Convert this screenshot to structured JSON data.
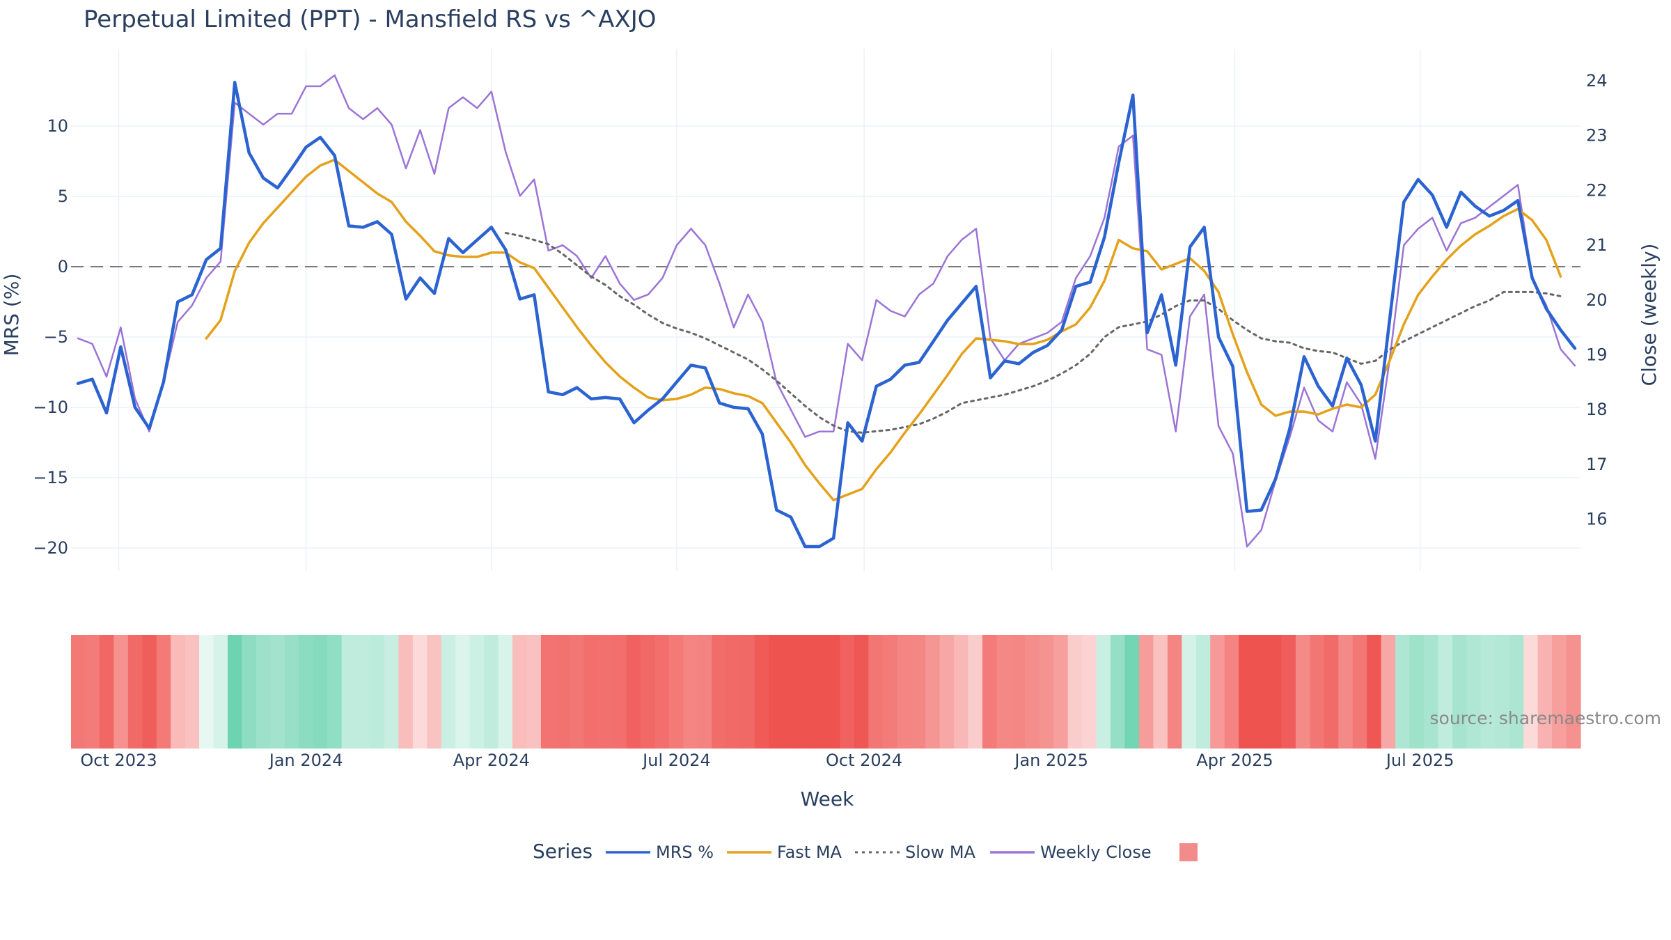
{
  "chart_data": {
    "type": "line",
    "title": "Perpetual Limited (PPT) - Mansfield RS vs ^AXJO",
    "xlabel": "Week",
    "ylabel": "MRS (%)",
    "y2label": "Close (weekly)",
    "ylim": [
      -21.5,
      14.5
    ],
    "y2lim": [
      15.2,
      24.6
    ],
    "yticks": [
      10,
      5,
      0,
      -5,
      -10,
      -15,
      -20
    ],
    "ytick_labels": [
      "10",
      "5",
      "0",
      "−5",
      "−10",
      "−15",
      "−20"
    ],
    "y2ticks": [
      24,
      23,
      22,
      21,
      20,
      19,
      18,
      17,
      16
    ],
    "x_start": "2023-09-11",
    "x_ticks": [
      "2023-10-01",
      "2024-01-01",
      "2024-04-01",
      "2024-07-01",
      "2024-10-01",
      "2025-01-01",
      "2025-04-01",
      "2025-07-01"
    ],
    "x_tick_labels": [
      "Oct 2023",
      "Jan 2024",
      "Apr 2024",
      "Jul 2024",
      "Oct 2024",
      "Jan 2025",
      "Apr 2025",
      "Jul 2025"
    ],
    "zero_line": 0,
    "legend_title": "Series",
    "legend_position": "bottom",
    "source_note": "source: sharemaestro.com",
    "series": [
      {
        "name": "MRS %",
        "color": "#2b63d0",
        "style": "solid",
        "axis": "y",
        "values": [
          -8.3,
          -8,
          -10.4,
          -5.7,
          -10,
          -11.5,
          -8.2,
          -2.5,
          -2,
          0.5,
          1.3,
          13.1,
          8.1,
          6.3,
          5.6,
          7,
          8.5,
          9.2,
          7.9,
          2.9,
          2.8,
          3.2,
          2.3,
          -2.3,
          -0.8,
          -1.9,
          2,
          1,
          1.9,
          2.8,
          1.2,
          -2.3,
          -2,
          -8.9,
          -9.1,
          -8.6,
          -9.4,
          -9.3,
          -9.4,
          -11.1,
          -10.2,
          -9.4,
          -8.2,
          -7,
          -7.2,
          -9.7,
          -10,
          -10.1,
          -11.9,
          -17.3,
          -17.8,
          -19.9,
          -19.9,
          -19.3,
          -11.1,
          -12.4,
          -8.5,
          -8,
          -7,
          -6.8,
          -5.3,
          -3.8,
          -2.6,
          -1.4,
          -7.9,
          -6.7,
          -6.9,
          -6.1,
          -5.6,
          -4.5,
          -1.4,
          -1.1,
          2.1,
          7.4,
          12.2,
          -4.7,
          -2,
          -7,
          1.4,
          2.8,
          -5,
          -7.1,
          -17.4,
          -17.3,
          -15.1,
          -11.5,
          -6.4,
          -8.5,
          -9.9,
          -6.5,
          -8.4,
          -12.4,
          -3.8,
          4.6,
          6.2,
          5.1,
          2.8,
          5.3,
          4.3,
          3.6,
          4,
          4.7,
          -0.8,
          -3,
          -4.5,
          -5.8
        ]
      },
      {
        "name": "Fast MA",
        "color": "#e4a11b",
        "style": "solid",
        "axis": "y",
        "start_index": 9,
        "values": [
          -5.1,
          -3.8,
          -0.3,
          1.7,
          3.1,
          4.2,
          5.3,
          6.4,
          7.2,
          7.6,
          6.8,
          6,
          5.2,
          4.6,
          3.2,
          2.2,
          1.1,
          0.8,
          0.7,
          0.7,
          1,
          1,
          0.3,
          -0.1,
          -1.5,
          -2.9,
          -4.3,
          -5.6,
          -6.8,
          -7.8,
          -8.6,
          -9.3,
          -9.5,
          -9.4,
          -9.1,
          -8.6,
          -8.7,
          -9,
          -9.2,
          -9.7,
          -11.1,
          -12.5,
          -14.1,
          -15.4,
          -16.6,
          -16.2,
          -15.8,
          -14.4,
          -13.2,
          -11.8,
          -10.5,
          -9.1,
          -7.7,
          -6.2,
          -5.1,
          -5.2,
          -5.3,
          -5.5,
          -5.5,
          -5.2,
          -4.6,
          -4.1,
          -2.9,
          -1,
          1.9,
          1.3,
          1.1,
          -0.2,
          0.2,
          0.6,
          -0.3,
          -1.8,
          -4.8,
          -7.5,
          -9.8,
          -10.6,
          -10.3,
          -10.3,
          -10.5,
          -10.1,
          -9.8,
          -10,
          -9.1,
          -6.7,
          -4.1,
          -2,
          -0.7,
          0.5,
          1.5,
          2.3,
          2.9,
          3.6,
          4.1,
          3.3,
          1.9,
          -0.7
        ]
      },
      {
        "name": "Slow MA",
        "color": "#666666",
        "style": "dotted",
        "axis": "y",
        "start_index": 30,
        "values": [
          2.4,
          2.2,
          1.9,
          1.6,
          0.9,
          0.1,
          -0.7,
          -1.3,
          -2.1,
          -2.7,
          -3.4,
          -4,
          -4.4,
          -4.7,
          -5.1,
          -5.6,
          -6.1,
          -6.6,
          -7.3,
          -8.1,
          -9,
          -9.9,
          -10.7,
          -11.3,
          -11.7,
          -11.8,
          -11.7,
          -11.6,
          -11.4,
          -11.2,
          -10.8,
          -10.3,
          -9.7,
          -9.5,
          -9.3,
          -9.1,
          -8.8,
          -8.5,
          -8.1,
          -7.6,
          -7,
          -6.2,
          -5,
          -4.3,
          -4.1,
          -3.9,
          -3.4,
          -2.8,
          -2.4,
          -2.4,
          -3,
          -3.8,
          -4.5,
          -5.1,
          -5.3,
          -5.4,
          -5.8,
          -6,
          -6.1,
          -6.5,
          -6.9,
          -6.7,
          -5.9,
          -5.3,
          -4.8,
          -4.3,
          -3.8,
          -3.3,
          -2.8,
          -2.4,
          -1.8,
          -1.8,
          -1.8,
          -1.9,
          -2.1
        ]
      },
      {
        "name": "Weekly Close",
        "color": "#9b74d6",
        "style": "solid",
        "axis": "y2",
        "values": [
          19.3,
          19.2,
          18.6,
          19.5,
          18.2,
          17.6,
          18.5,
          19.6,
          19.9,
          20.4,
          20.7,
          23.6,
          23.4,
          23.2,
          23.4,
          23.4,
          23.9,
          23.9,
          24.1,
          23.5,
          23.3,
          23.5,
          23.2,
          22.4,
          23.1,
          22.3,
          23.5,
          23.7,
          23.5,
          23.8,
          22.7,
          21.9,
          22.2,
          20.9,
          21,
          20.8,
          20.4,
          20.8,
          20.3,
          20,
          20.1,
          20.4,
          21,
          21.3,
          21,
          20.3,
          19.5,
          20.1,
          19.6,
          18.5,
          18,
          17.5,
          17.6,
          17.6,
          19.2,
          18.9,
          20,
          19.8,
          19.7,
          20.1,
          20.3,
          20.8,
          21.1,
          21.3,
          19.3,
          18.9,
          19.2,
          19.3,
          19.4,
          19.6,
          20.4,
          20.8,
          21.5,
          22.8,
          23,
          19.1,
          19,
          17.6,
          19.7,
          20.1,
          17.7,
          17.2,
          15.5,
          15.8,
          16.7,
          17.5,
          18.4,
          17.8,
          17.6,
          18.5,
          18.1,
          17.1,
          18.9,
          21,
          21.3,
          21.5,
          20.9,
          21.4,
          21.5,
          21.7,
          21.9,
          22.1,
          20.4,
          19.9,
          19.1,
          18.8
        ]
      },
      {
        "name": "",
        "color": "#f28b8b",
        "style": "marker",
        "axis": "none",
        "values": []
      }
    ],
    "heat_strip": {
      "scale": [
        "#ef5350",
        "#ffffff",
        "#6dd3b0"
      ],
      "values": [
        -8.3,
        -8,
        -10.4,
        -5.7,
        -10,
        -11.5,
        -8.2,
        -2.5,
        -2,
        0.5,
        1.3,
        13.1,
        8.1,
        6.3,
        5.6,
        7,
        8.5,
        9.2,
        7.9,
        2.9,
        2.8,
        3.2,
        2.3,
        -2.3,
        -0.8,
        -1.9,
        2,
        1,
        1.9,
        2.8,
        1.2,
        -2.3,
        -2,
        -8.9,
        -9.1,
        -8.6,
        -9.4,
        -9.3,
        -9.4,
        -11.1,
        -10.2,
        -9.4,
        -8.2,
        -7,
        -7.2,
        -9.7,
        -10,
        -10.1,
        -11.9,
        -17.3,
        -17.8,
        -19.9,
        -19.9,
        -19.3,
        -11.1,
        -12.4,
        -8.5,
        -8,
        -7,
        -6.8,
        -5.3,
        -3.8,
        -2.6,
        -1.4,
        -7.9,
        -6.7,
        -6.9,
        -6.1,
        -5.6,
        -4.5,
        -1.4,
        -1.1,
        2.1,
        7.4,
        12.2,
        -4.7,
        -2,
        -7,
        1.4,
        2.8,
        -5,
        -7.1,
        -17.4,
        -17.3,
        -15.1,
        -11.5,
        -6.4,
        -8.5,
        -9.9,
        -6.5,
        -8.4,
        -12.4,
        -3.8,
        4.6,
        6.2,
        5.1,
        2.8,
        5.3,
        4.3,
        3.6,
        4,
        4.7,
        -0.8,
        -3,
        -4.5,
        -5.8
      ]
    }
  }
}
